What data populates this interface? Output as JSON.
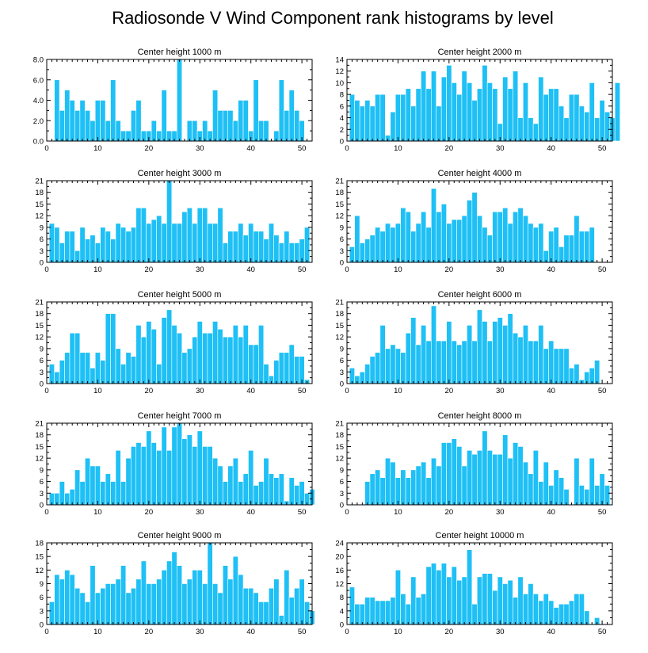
{
  "title": "Radiosonde V Wind Component rank histograms by level",
  "colors": {
    "bar": "#1ec0f5",
    "bar_edge": "#ffffff",
    "axis": "#000000"
  },
  "chart_data": [
    {
      "type": "bar",
      "title": "Center height 1000 m",
      "ylim": [
        0,
        8
      ],
      "yticks": [
        "0.0",
        "2.0",
        "4.0",
        "6.0",
        "8.0"
      ],
      "ytick_values": [
        0,
        2,
        4,
        6,
        8
      ],
      "xlim": [
        0,
        52
      ],
      "xticks": [
        0,
        10,
        20,
        30,
        40,
        50
      ],
      "values": [
        0,
        6,
        3,
        5,
        4,
        3,
        4,
        3,
        2,
        4,
        4,
        2,
        6,
        2,
        1,
        1,
        3,
        4,
        1,
        1,
        2,
        1,
        5,
        1,
        1,
        8,
        0,
        2,
        2,
        1,
        2,
        1,
        5,
        3,
        3,
        3,
        2,
        4,
        4,
        1,
        6,
        2,
        2,
        0,
        1,
        6,
        3,
        5,
        3,
        2
      ]
    },
    {
      "type": "bar",
      "title": "Center height 2000 m",
      "ylim": [
        0,
        14
      ],
      "yticks": [
        "0",
        "2",
        "4",
        "6",
        "8",
        "10",
        "12",
        "14"
      ],
      "ytick_values": [
        0,
        2,
        4,
        6,
        8,
        10,
        12,
        14
      ],
      "xlim": [
        0,
        52
      ],
      "xticks": [
        0,
        10,
        20,
        30,
        40,
        50
      ],
      "values": [
        8,
        7,
        6,
        7,
        6,
        8,
        8,
        1,
        5,
        8,
        8,
        9,
        6,
        9,
        12,
        9,
        12,
        6,
        11,
        13,
        10,
        8,
        12,
        10,
        7,
        9,
        13,
        10,
        9,
        3,
        11,
        9,
        12,
        4,
        10,
        4,
        3,
        11,
        8,
        9,
        9,
        6,
        4,
        8,
        8,
        6,
        5,
        10,
        4,
        7,
        5,
        4,
        10
      ]
    },
    {
      "type": "bar",
      "title": "Center height 3000 m",
      "ylim": [
        0,
        21
      ],
      "yticks": [
        "0",
        "3",
        "6",
        "9",
        "12",
        "15",
        "18",
        "21"
      ],
      "ytick_values": [
        0,
        3,
        6,
        9,
        12,
        15,
        18,
        21
      ],
      "xlim": [
        0,
        52
      ],
      "xticks": [
        0,
        10,
        20,
        30,
        40,
        50
      ],
      "values": [
        10,
        9,
        5,
        8,
        8,
        3,
        9,
        6,
        7,
        5,
        9,
        8,
        6,
        10,
        9,
        8,
        9,
        14,
        14,
        10,
        11,
        12,
        10,
        21,
        10,
        10,
        13,
        14,
        10,
        14,
        14,
        10,
        10,
        14,
        5,
        8,
        8,
        10,
        7,
        10,
        8,
        8,
        6,
        10,
        7,
        5,
        8,
        5,
        5,
        6,
        9
      ]
    },
    {
      "type": "bar",
      "title": "Center height 4000 m",
      "ylim": [
        0,
        21
      ],
      "yticks": [
        "0",
        "3",
        "6",
        "9",
        "12",
        "15",
        "18",
        "21"
      ],
      "ytick_values": [
        0,
        3,
        6,
        9,
        12,
        15,
        18,
        21
      ],
      "xlim": [
        0,
        52
      ],
      "xticks": [
        0,
        10,
        20,
        30,
        40,
        50
      ],
      "values": [
        4,
        12,
        5,
        6,
        7,
        9,
        8,
        10,
        9,
        10,
        14,
        13,
        8,
        10,
        13,
        9,
        19,
        13,
        15,
        10,
        11,
        11,
        12,
        16,
        18,
        12,
        9,
        7,
        13,
        13,
        14,
        10,
        13,
        14,
        12,
        10,
        9,
        10,
        3,
        8,
        9,
        4,
        7,
        7,
        12,
        8,
        8,
        9
      ]
    },
    {
      "type": "bar",
      "title": "Center height 5000 m",
      "ylim": [
        0,
        21
      ],
      "yticks": [
        "0",
        "3",
        "6",
        "9",
        "12",
        "15",
        "18",
        "21"
      ],
      "ytick_values": [
        0,
        3,
        6,
        9,
        12,
        15,
        18,
        21
      ],
      "xlim": [
        0,
        52
      ],
      "xticks": [
        0,
        10,
        20,
        30,
        40,
        50
      ],
      "values": [
        5,
        3,
        6,
        8,
        13,
        13,
        8,
        8,
        4,
        8,
        6,
        18,
        18,
        9,
        5,
        8,
        7,
        15,
        12,
        16,
        14,
        5,
        17,
        19,
        15,
        13,
        8,
        9,
        12,
        16,
        13,
        13,
        16,
        14,
        12,
        12,
        15,
        12,
        15,
        10,
        10,
        15,
        5,
        2,
        6,
        8,
        8,
        10,
        7,
        7,
        1
      ]
    },
    {
      "type": "bar",
      "title": "Center height 6000 m",
      "ylim": [
        0,
        21
      ],
      "yticks": [
        "0",
        "3",
        "6",
        "9",
        "12",
        "15",
        "18",
        "21"
      ],
      "ytick_values": [
        0,
        3,
        6,
        9,
        12,
        15,
        18,
        21
      ],
      "xlim": [
        0,
        52
      ],
      "xticks": [
        0,
        10,
        20,
        30,
        40,
        50
      ],
      "values": [
        4,
        2,
        3,
        5,
        7,
        8,
        15,
        9,
        10,
        9,
        8,
        13,
        17,
        10,
        15,
        11,
        20,
        11,
        11,
        16,
        11,
        10,
        11,
        15,
        11,
        19,
        16,
        11,
        16,
        17,
        15,
        18,
        13,
        12,
        15,
        11,
        11,
        15,
        9,
        11,
        9,
        9,
        9,
        4,
        5,
        1,
        3,
        4,
        6
      ]
    },
    {
      "type": "bar",
      "title": "Center height 7000 m",
      "ylim": [
        0,
        21
      ],
      "yticks": [
        "0",
        "3",
        "6",
        "9",
        "12",
        "15",
        "18",
        "21"
      ],
      "ytick_values": [
        0,
        3,
        6,
        9,
        12,
        15,
        18,
        21
      ],
      "xlim": [
        0,
        52
      ],
      "xticks": [
        0,
        10,
        20,
        30,
        40,
        50
      ],
      "values": [
        3,
        3,
        6,
        3,
        4,
        9,
        6,
        12,
        10,
        10,
        6,
        8,
        6,
        14,
        6,
        12,
        15,
        16,
        15,
        19,
        16,
        14,
        20,
        14,
        20,
        21,
        17,
        18,
        15,
        19,
        15,
        15,
        12,
        10,
        6,
        10,
        12,
        6,
        8,
        14,
        5,
        6,
        12,
        8,
        7,
        8,
        1,
        7,
        5,
        6,
        3,
        4
      ]
    },
    {
      "type": "bar",
      "title": "Center height 8000 m",
      "ylim": [
        0,
        21
      ],
      "yticks": [
        "0",
        "3",
        "6",
        "9",
        "12",
        "15",
        "18",
        "21"
      ],
      "ytick_values": [
        0,
        3,
        6,
        9,
        12,
        15,
        18,
        21
      ],
      "xlim": [
        0,
        52
      ],
      "xticks": [
        0,
        10,
        20,
        30,
        40,
        50
      ],
      "values": [
        0,
        0,
        0,
        6,
        8,
        9,
        7,
        12,
        11,
        7,
        9,
        7,
        9,
        10,
        11,
        7,
        12,
        10,
        16,
        16,
        17,
        15,
        10,
        14,
        13,
        14,
        19,
        14,
        13,
        13,
        18,
        12,
        16,
        15,
        11,
        8,
        14,
        6,
        11,
        5,
        9,
        7,
        4,
        0,
        12,
        5,
        4,
        12,
        5,
        8,
        5
      ]
    },
    {
      "type": "bar",
      "title": "Center height 9000 m",
      "ylim": [
        0,
        18
      ],
      "yticks": [
        "0",
        "3",
        "6",
        "9",
        "12",
        "15",
        "18"
      ],
      "ytick_values": [
        0,
        3,
        6,
        9,
        12,
        15,
        18
      ],
      "xlim": [
        0,
        52
      ],
      "xticks": [
        0,
        10,
        20,
        30,
        40,
        50
      ],
      "values": [
        5,
        11,
        10,
        12,
        11,
        8,
        7,
        5,
        13,
        7,
        8,
        9,
        9,
        10,
        13,
        7,
        8,
        10,
        14,
        9,
        9,
        10,
        12,
        14,
        16,
        13,
        9,
        10,
        12,
        12,
        9,
        18,
        9,
        7,
        13,
        10,
        15,
        11,
        8,
        8,
        7,
        5,
        5,
        8,
        10,
        2,
        12,
        6,
        8,
        10,
        5,
        3
      ]
    },
    {
      "type": "bar",
      "title": "Center height 10000 m",
      "ylim": [
        0,
        24
      ],
      "yticks": [
        "0",
        "4",
        "8",
        "12",
        "16",
        "20",
        "24"
      ],
      "ytick_values": [
        0,
        4,
        8,
        12,
        16,
        20,
        24
      ],
      "xlim": [
        0,
        52
      ],
      "xticks": [
        0,
        10,
        20,
        30,
        40,
        50
      ],
      "values": [
        11,
        6,
        6,
        8,
        8,
        7,
        7,
        7,
        8,
        16,
        9,
        6,
        14,
        8,
        9,
        17,
        18,
        16,
        18,
        14,
        17,
        13,
        14,
        22,
        6,
        14,
        15,
        15,
        10,
        14,
        12,
        13,
        8,
        14,
        9,
        12,
        9,
        7,
        9,
        7,
        5,
        6,
        6,
        7,
        9,
        9,
        4,
        0,
        2
      ]
    }
  ]
}
